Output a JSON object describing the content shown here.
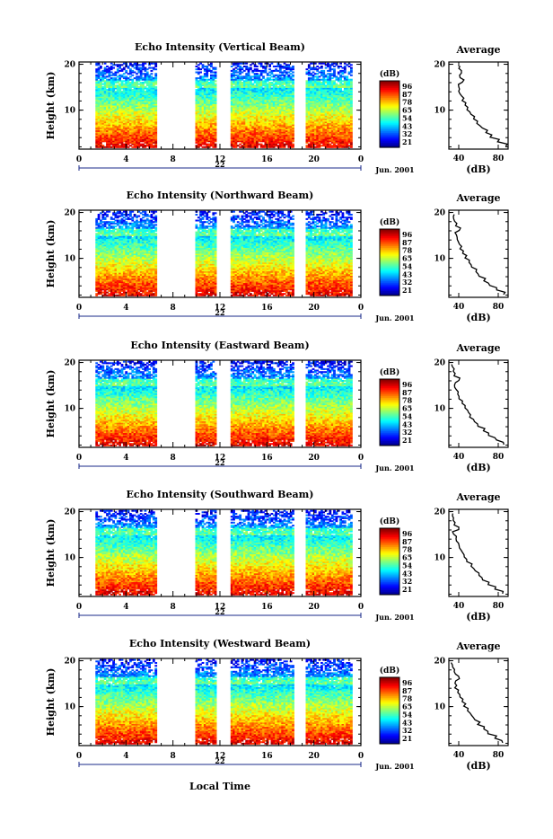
{
  "chart_data": {
    "type": "heatmap",
    "x_label": "Local Time",
    "date_label": "Jun. 2001",
    "day_label": "22",
    "x_ticks": [
      "0",
      "4",
      "8",
      "12",
      "16",
      "20",
      "0"
    ],
    "x_range": [
      0,
      24
    ],
    "y_label": "Height (km)",
    "y_ticks": [
      "20",
      "10"
    ],
    "y_range": [
      1.5,
      20.5
    ],
    "colorbar": {
      "unit": "(dB)",
      "ticks": [
        "96",
        "87",
        "78",
        "65",
        "54",
        "43",
        "32",
        "21"
      ],
      "range": [
        21,
        96
      ]
    },
    "data_intervals": [
      [
        1.4,
        6.6
      ],
      [
        9.9,
        11.6
      ],
      [
        12.9,
        18.2
      ],
      [
        19.3,
        23.2
      ]
    ],
    "profile": {
      "title": "Average",
      "x_label": "(dB)",
      "x_ticks": [
        "40",
        "80"
      ],
      "x_range": [
        30,
        90
      ],
      "y_ticks": [
        "20",
        "10"
      ],
      "heights": [
        2.5,
        3.5,
        4.5,
        5.5,
        6.5,
        7.5,
        8.5,
        9.5,
        10.5,
        11.5,
        12.5,
        13.5,
        14.5,
        15.5,
        16.5,
        17.5,
        18.5,
        19.5
      ]
    },
    "panels": [
      {
        "title": "Echo Intensity (Vertical Beam)",
        "profile_db": [
          88,
          80,
          72,
          68,
          63,
          58,
          55,
          52,
          49,
          46,
          44,
          42,
          41,
          40,
          44,
          41,
          43,
          40
        ]
      },
      {
        "title": "Echo Intensity (Northward Beam)",
        "profile_db": [
          86,
          78,
          71,
          66,
          61,
          57,
          53,
          50,
          47,
          44,
          42,
          40,
          38,
          37,
          41,
          37,
          36,
          35
        ]
      },
      {
        "title": "Echo Intensity (Eastward Beam)",
        "profile_db": [
          85,
          78,
          70,
          65,
          60,
          56,
          52,
          49,
          46,
          43,
          41,
          39,
          37,
          36,
          40,
          36,
          35,
          33
        ]
      },
      {
        "title": "Echo Intensity (Southward Beam)",
        "profile_db": [
          85,
          77,
          70,
          65,
          60,
          56,
          52,
          49,
          46,
          43,
          41,
          39,
          37,
          35,
          39,
          35,
          34,
          33
        ]
      },
      {
        "title": "Echo Intensity (Westward Beam)",
        "profile_db": [
          84,
          77,
          70,
          65,
          60,
          56,
          52,
          49,
          46,
          43,
          41,
          39,
          37,
          36,
          40,
          36,
          35,
          33
        ]
      }
    ]
  }
}
